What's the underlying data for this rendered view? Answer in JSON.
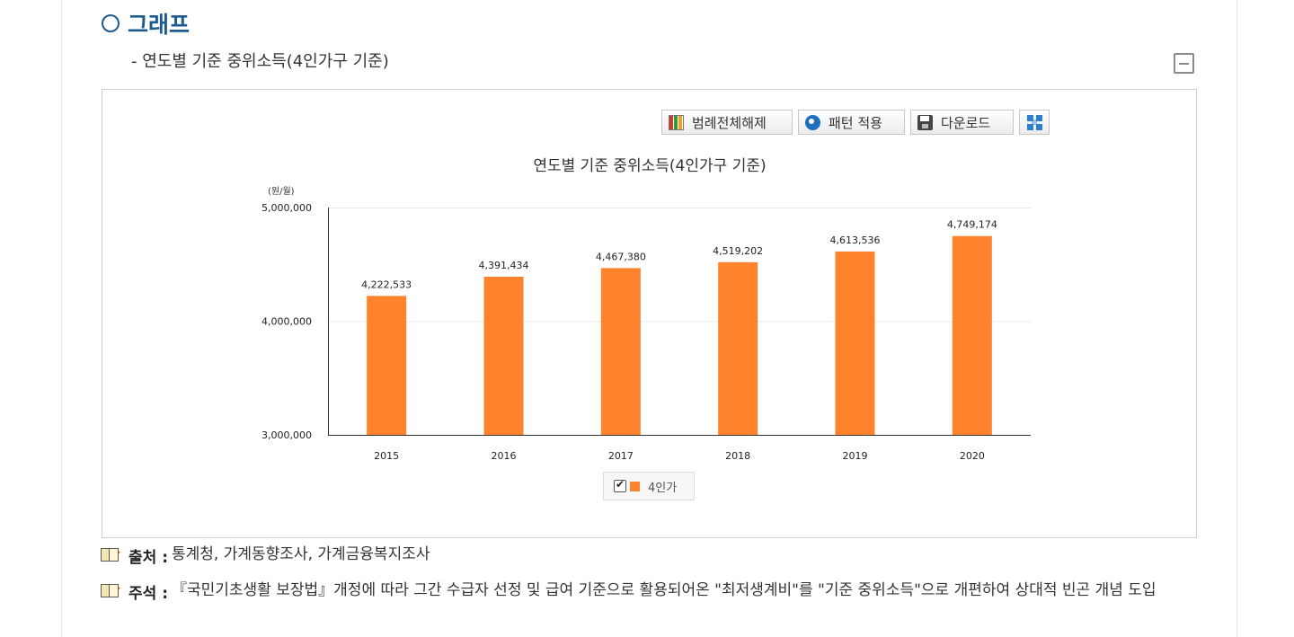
{
  "section": {
    "title": "그래프"
  },
  "subtitle": "- 연도별 기준 중위소득(4인가구 기준)",
  "toolbar": {
    "legend_toggle_label": "범례전체해제",
    "pattern_label": "패턴 적용",
    "download_label": "다운로드"
  },
  "colors": {
    "bar": "#ff822d",
    "accent": "#1c5b8f"
  },
  "chart_data": {
    "type": "bar",
    "title": "연도별 기준 중위소득(4인가구 기준)",
    "ylabel": "(원/월)",
    "xlabel": "",
    "categories": [
      "2015",
      "2016",
      "2017",
      "2018",
      "2019",
      "2020"
    ],
    "series": [
      {
        "name": "4인가",
        "values": [
          4222533,
          4391434,
          4467380,
          4519202,
          4613536,
          4749174
        ]
      }
    ],
    "value_labels": [
      "4,222,533",
      "4,391,434",
      "4,467,380",
      "4,519,202",
      "4,613,536",
      "4,749,174"
    ],
    "ylim": [
      3000000,
      5000000
    ],
    "yticks": [
      3000000,
      4000000,
      5000000
    ],
    "ytick_labels": [
      "3,000,000",
      "4,000,000",
      "5,000,000"
    ],
    "grid": true,
    "legend_position": "bottom"
  },
  "notes": {
    "source_key": "출처 :",
    "source_value": "통계청, 가계동향조사, 가계금융복지조사",
    "remark_key": "주석 :",
    "remark_value": "『국민기초생활 보장법』개정에 따라 그간 수급자 선정 및 급여 기준으로 활용되어온 \"최저생계비\"를 \"기준 중위소득\"으로 개편하여 상대적 빈곤 개념 도입"
  }
}
